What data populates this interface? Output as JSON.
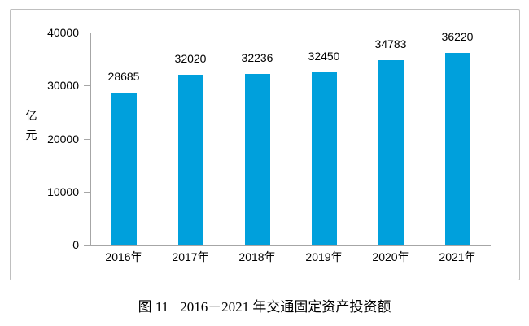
{
  "chart_data": {
    "type": "bar",
    "title": "",
    "categories": [
      "2016年",
      "2017年",
      "2018年",
      "2019年",
      "2020年",
      "2021年"
    ],
    "values": [
      28685,
      32020,
      32236,
      32450,
      34783,
      36220
    ],
    "value_labels": [
      "28685",
      "32020",
      "32236",
      "32450",
      "34783",
      "36220"
    ],
    "xlabel": "",
    "ylabel": "亿元",
    "ylim": [
      0,
      40000
    ],
    "yticks": [
      0,
      10000,
      20000,
      30000,
      40000
    ],
    "ytick_labels": [
      "0",
      "10000",
      "20000",
      "30000",
      "40000"
    ],
    "grid": false,
    "legend": false,
    "bar_color": "#00a0dc"
  },
  "caption": {
    "label": "图 11",
    "title": "2016－2021 年交通固定资产投资额"
  },
  "colors": {
    "bar": "#00a0dc",
    "axis": "#a6a6a6",
    "frame": "#bfbfbf",
    "text": "#000000",
    "background": "#ffffff"
  }
}
